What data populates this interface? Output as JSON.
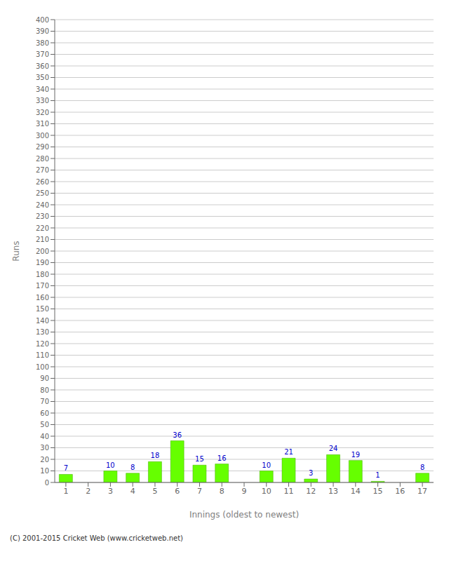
{
  "chart_data": {
    "type": "bar",
    "categories": [
      "1",
      "2",
      "3",
      "4",
      "5",
      "6",
      "7",
      "8",
      "9",
      "10",
      "11",
      "12",
      "13",
      "14",
      "15",
      "16",
      "17"
    ],
    "values": [
      7,
      0,
      10,
      8,
      18,
      36,
      15,
      16,
      0,
      10,
      21,
      3,
      24,
      19,
      1,
      0,
      8
    ],
    "color": "#66ff00",
    "xlabel": "Innings (oldest to newest)",
    "ylabel": "Runs",
    "ylim": [
      0,
      400
    ],
    "yticks": [
      0,
      10,
      20,
      30,
      40,
      50,
      60,
      70,
      80,
      90,
      100,
      110,
      120,
      130,
      140,
      150,
      160,
      170,
      180,
      190,
      200,
      210,
      220,
      230,
      240,
      250,
      260,
      270,
      280,
      290,
      300,
      310,
      320,
      330,
      340,
      350,
      360,
      370,
      380,
      390,
      400
    ],
    "grid": true,
    "data_labels": true,
    "annotations": [
      "(C) 2001-2015 Cricket Web (www.cricketweb.net)"
    ]
  }
}
